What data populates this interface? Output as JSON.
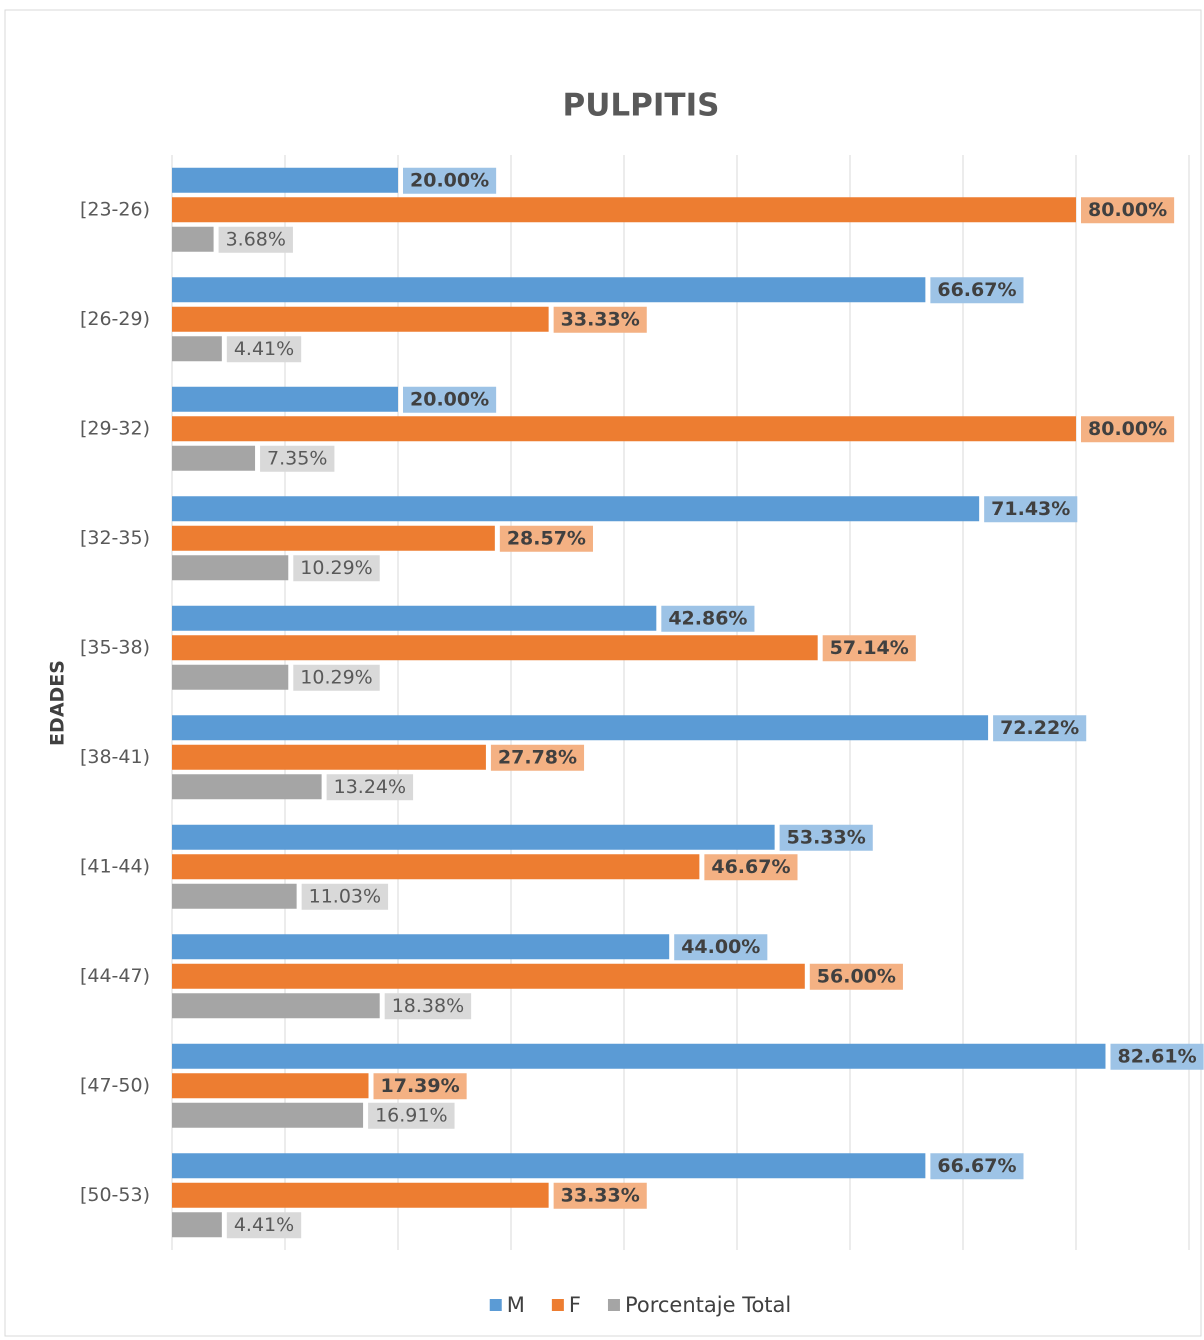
{
  "chart_data": {
    "type": "bar",
    "orientation": "horizontal",
    "title": "PULPITIS",
    "y_label": "EDADES",
    "categories": [
      "[23-26)",
      "[26-29)",
      "[29-32)",
      "[32-35)",
      "[35-38)",
      "[38-41)",
      "[41-44)",
      "[44-47)",
      "[47-50)",
      "[50-53)"
    ],
    "series": [
      {
        "name": "M",
        "color": "#5b9bd5",
        "values": [
          20,
          66.67,
          20,
          71.43,
          42.86,
          72.22,
          53.33,
          44,
          82.61,
          66.67
        ],
        "value_labels": [
          "20.00%",
          "66.67%",
          "20.00%",
          "71.43%",
          "42.86%",
          "72.22%",
          "53.33%",
          "44.00%",
          "82.61%",
          "66.67%"
        ]
      },
      {
        "name": "F",
        "color": "#ed7d31",
        "values": [
          80,
          33.33,
          80,
          28.57,
          57.14,
          27.78,
          46.67,
          56,
          17.39,
          33.33
        ],
        "value_labels": [
          "80.00%",
          "33.33%",
          "80.00%",
          "28.57%",
          "57.14%",
          "27.78%",
          "46.67%",
          "56.00%",
          "17.39%",
          "33.33%"
        ]
      },
      {
        "name": "Porcentaje Total",
        "color": "#a5a5a5",
        "values": [
          3.68,
          4.41,
          7.35,
          10.29,
          10.29,
          13.24,
          11.03,
          18.38,
          16.91,
          4.41
        ],
        "value_labels": [
          "3.68%",
          "4.41%",
          "7.35%",
          "10.29%",
          "10.29%",
          "13.24%",
          "11.03%",
          "18.38%",
          "16.91%",
          "4.41%"
        ]
      }
    ],
    "xlim": [
      0,
      90
    ],
    "xticks": [
      0,
      10,
      20,
      30,
      40,
      50,
      60,
      70,
      80,
      90
    ],
    "grid": true,
    "legend": "bottom"
  }
}
